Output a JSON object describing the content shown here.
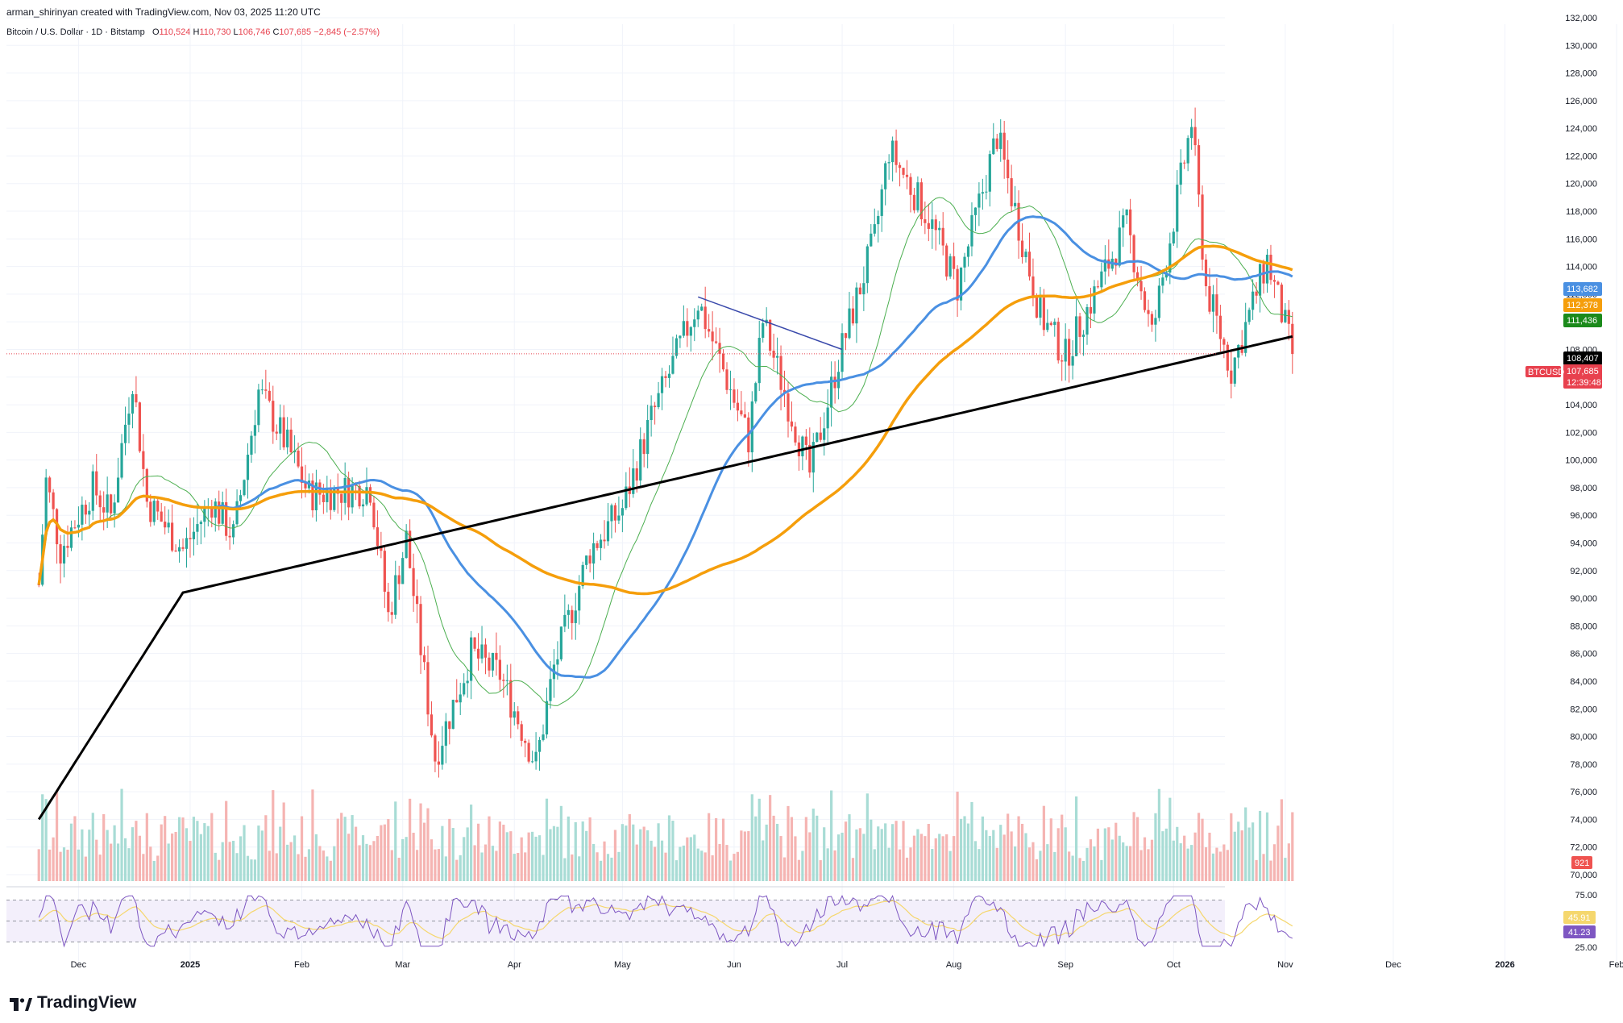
{
  "header": {
    "author_line": "arman_shirinyan created with TradingView.com, Nov 03, 2025 11:20 UTC",
    "symbol_desc": "Bitcoin / U.S. Dollar · 1D · Bitstamp",
    "o_label": "O",
    "o_value": "110,524",
    "h_label": "H",
    "h_value": "110,730",
    "l_label": "L",
    "l_value": "106,746",
    "c_label": "C",
    "c_value": "107,685",
    "change": "−2,845 (−2.57%)"
  },
  "brand": {
    "name": "TradingView"
  },
  "colors": {
    "up": "#26a69a",
    "down": "#ef5350",
    "ma_fast": "#4caf50",
    "ma_blue": "#4a90e2",
    "ma_orange": "#f59e0b",
    "ma_black": "#000000",
    "trendline": "#3949ab",
    "rsi": "#7e57c2",
    "rsi_ma": "#f5d76e"
  },
  "chart_data": [
    {
      "type": "candlestick",
      "title": "Bitcoin / U.S. Dollar · 1D · Bitstamp",
      "symbol": "BTCUSD",
      "ylim": [
        70000,
        132000
      ],
      "y_ticks": [
        "132,000",
        "130,000",
        "128,000",
        "126,000",
        "124,000",
        "122,000",
        "120,000",
        "118,000",
        "116,000",
        "114,000",
        "112,000",
        "110,000",
        "108,000",
        "106,000",
        "104,000",
        "102,000",
        "100,000",
        "98,000",
        "96,000",
        "94,000",
        "92,000",
        "90,000",
        "88,000",
        "86,000",
        "84,000",
        "82,000",
        "80,000",
        "78,000",
        "76,000",
        "74,000",
        "72,000",
        "70,000"
      ],
      "x_ticks": [
        "Dec",
        "2025",
        "Feb",
        "Mar",
        "Apr",
        "May",
        "Jun",
        "Jul",
        "Aug",
        "Sep",
        "Oct",
        "Nov",
        "Dec",
        "2026",
        "Feb"
      ],
      "price_path_approx": [
        {
          "date": "2024-11-20",
          "close": 91000
        },
        {
          "date": "2024-11-22",
          "close": 98500
        },
        {
          "date": "2024-11-26",
          "close": 93500
        },
        {
          "date": "2024-12-05",
          "close": 98000
        },
        {
          "date": "2024-12-10",
          "close": 96000
        },
        {
          "date": "2024-12-16",
          "close": 106000
        },
        {
          "date": "2024-12-20",
          "close": 97000
        },
        {
          "date": "2024-12-30",
          "close": 93500
        },
        {
          "date": "2025-01-07",
          "close": 97000
        },
        {
          "date": "2025-01-13",
          "close": 94500
        },
        {
          "date": "2025-01-20",
          "close": 105000
        },
        {
          "date": "2025-01-28",
          "close": 101000
        },
        {
          "date": "2025-02-03",
          "close": 97500
        },
        {
          "date": "2025-02-20",
          "close": 98000
        },
        {
          "date": "2025-02-25",
          "close": 88700
        },
        {
          "date": "2025-03-02",
          "close": 94300
        },
        {
          "date": "2025-03-10",
          "close": 78500
        },
        {
          "date": "2025-03-20",
          "close": 86000
        },
        {
          "date": "2025-03-28",
          "close": 84500
        },
        {
          "date": "2025-04-07",
          "close": 78000
        },
        {
          "date": "2025-04-12",
          "close": 85000
        },
        {
          "date": "2025-04-22",
          "close": 93500
        },
        {
          "date": "2025-05-01",
          "close": 96500
        },
        {
          "date": "2025-05-09",
          "close": 103000
        },
        {
          "date": "2025-05-22",
          "close": 111500
        },
        {
          "date": "2025-06-05",
          "close": 101500
        },
        {
          "date": "2025-06-09",
          "close": 110000
        },
        {
          "date": "2025-06-22",
          "close": 99000
        },
        {
          "date": "2025-06-30",
          "close": 107300
        },
        {
          "date": "2025-07-10",
          "close": 116000
        },
        {
          "date": "2025-07-14",
          "close": 122500
        },
        {
          "date": "2025-07-25",
          "close": 117500
        },
        {
          "date": "2025-08-02",
          "close": 112500
        },
        {
          "date": "2025-08-13",
          "close": 123500
        },
        {
          "date": "2025-08-25",
          "close": 110500
        },
        {
          "date": "2025-09-01",
          "close": 107500
        },
        {
          "date": "2025-09-18",
          "close": 117000
        },
        {
          "date": "2025-09-25",
          "close": 109000
        },
        {
          "date": "2025-10-06",
          "close": 124500
        },
        {
          "date": "2025-10-10",
          "close": 112500
        },
        {
          "date": "2025-10-17",
          "close": 106500
        },
        {
          "date": "2025-10-27",
          "close": 114500
        },
        {
          "date": "2025-11-03",
          "close": 107685
        }
      ],
      "moving_averages": [
        {
          "name": "MA fast (green)",
          "value": "111,436"
        },
        {
          "name": "MA 50 (blue)",
          "value": "113,682"
        },
        {
          "name": "MA 100 (orange)",
          "value": "112,378"
        },
        {
          "name": "MA 200 (black)",
          "value": "108,407"
        }
      ],
      "trendline": {
        "from": {
          "date": "2025-05-22",
          "price": 111800
        },
        "to": {
          "date": "2025-07-01",
          "price": 108000
        }
      },
      "price_tags": [
        {
          "label": "",
          "value": "113,682",
          "color": "#4a90e2"
        },
        {
          "label": "",
          "value": "112,378",
          "color": "#f59e0b"
        },
        {
          "label": "",
          "value": "111,436",
          "color": "#1b8a1b"
        },
        {
          "label": "",
          "value": "108,407",
          "color": "#000000"
        },
        {
          "label": "BTCUSD",
          "value": "107,685",
          "sub": "12:39:48",
          "color": "#e8414e"
        }
      ],
      "volume_tag": "921"
    },
    {
      "type": "line",
      "title": "RSI",
      "ylim": [
        25,
        75
      ],
      "y_ticks": [
        "75.00",
        "25.00"
      ],
      "levels": [
        70,
        50,
        30
      ],
      "values_tags": [
        {
          "value": "45.91",
          "color": "#f5d76e"
        },
        {
          "value": "41.23",
          "color": "#7e57c2"
        }
      ]
    }
  ]
}
